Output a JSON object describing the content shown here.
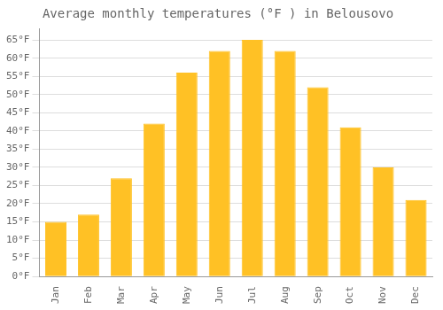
{
  "chart_data": {
    "type": "bar",
    "title": "Average monthly temperatures (°F ) in Belousovo",
    "categories": [
      "Jan",
      "Feb",
      "Mar",
      "Apr",
      "May",
      "Jun",
      "Jul",
      "Aug",
      "Sep",
      "Oct",
      "Nov",
      "Dec"
    ],
    "values": [
      15,
      17,
      27,
      42,
      56,
      62,
      65,
      62,
      52,
      41,
      30,
      21
    ],
    "color": "#FFC125",
    "ylim": [
      0,
      68
    ],
    "yticks": [
      {
        "value": 0,
        "label": "0°F"
      },
      {
        "value": 5,
        "label": "5°F"
      },
      {
        "value": 10,
        "label": "10°F"
      },
      {
        "value": 15,
        "label": "15°F"
      },
      {
        "value": 20,
        "label": "20°F"
      },
      {
        "value": 25,
        "label": "25°F"
      },
      {
        "value": 30,
        "label": "30°F"
      },
      {
        "value": 35,
        "label": "35°F"
      },
      {
        "value": 40,
        "label": "40°F"
      },
      {
        "value": 45,
        "label": "45°F"
      },
      {
        "value": 50,
        "label": "50°F"
      },
      {
        "value": 55,
        "label": "55°F"
      },
      {
        "value": 60,
        "label": "60°F"
      },
      {
        "value": 65,
        "label": "65°F"
      }
    ],
    "grid": true
  }
}
